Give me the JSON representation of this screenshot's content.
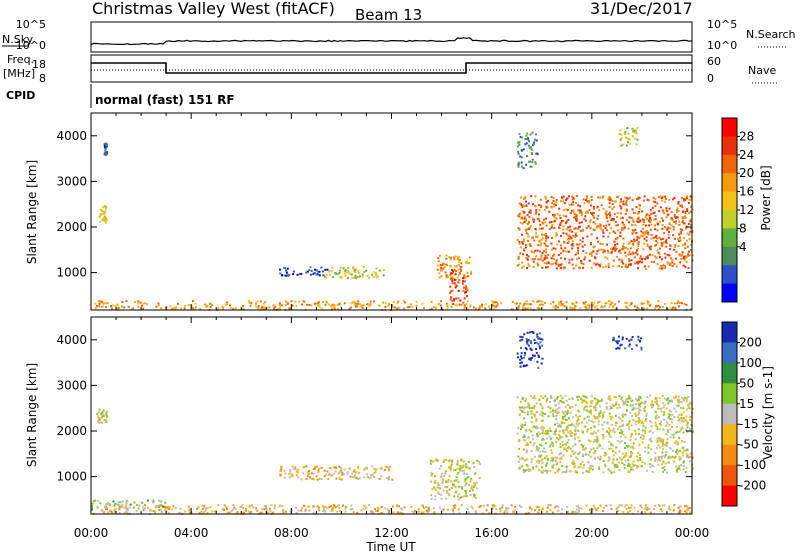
{
  "header": {
    "title": "Christmas Valley West (fitACF)",
    "beam": "Beam 13",
    "date": "31/Dec/2017"
  },
  "top_panels": {
    "nsky_label": "N.Sky",
    "nsearch_label": "N.Search",
    "noise_ticks_left": [
      "10^5",
      "10^0"
    ],
    "noise_ticks_right": [
      "10^5",
      "10^0"
    ],
    "freq_label_1": "Freq.",
    "freq_label_2": "[MHz]",
    "freq_ticks": [
      "18",
      "8"
    ],
    "nave_label": "Nave",
    "nave_ticks": [
      "60",
      "0"
    ],
    "cpid_label": "CPID",
    "cpid_value": "normal (fast) 151 RF"
  },
  "chart_data": [
    {
      "type": "heatmap",
      "name": "power",
      "ylabel": "Slant Range [km]",
      "xlabel": "Time UT",
      "x_ticks": [
        "00:00",
        "04:00",
        "08:00",
        "12:00",
        "16:00",
        "20:00",
        "00:00"
      ],
      "xlim": [
        0,
        24
      ],
      "ylim": [
        180,
        4500
      ],
      "y_ticks": [
        1000,
        2000,
        3000,
        4000
      ],
      "colorbar": {
        "label": "Power [dB]",
        "ticks": [
          "4",
          "8",
          "12",
          "16",
          "20",
          "24",
          "28"
        ],
        "colors": [
          "#0000ff",
          "#2e4fc7",
          "#4b8a5a",
          "#5fb03c",
          "#bcd12b",
          "#f2c018",
          "#f59a10",
          "#f0650c",
          "#e8300a",
          "#ff0000"
        ]
      },
      "regions": [
        {
          "t0": 0.0,
          "t1": 24.0,
          "r0": 200,
          "r1": 400,
          "level": 6
        },
        {
          "t0": 0.3,
          "t1": 0.6,
          "r0": 2100,
          "r1": 2500,
          "level": 5
        },
        {
          "t0": 0.5,
          "t1": 0.6,
          "r0": 3600,
          "r1": 3850,
          "level": 1
        },
        {
          "t0": 7.5,
          "t1": 9.5,
          "r0": 950,
          "r1": 1150,
          "level": 1
        },
        {
          "t0": 9.3,
          "t1": 11.7,
          "r0": 900,
          "r1": 1150,
          "level": 4
        },
        {
          "t0": 13.8,
          "t1": 15.2,
          "r0": 900,
          "r1": 1400,
          "level": 6
        },
        {
          "t0": 14.3,
          "t1": 15.0,
          "r0": 300,
          "r1": 1100,
          "level": 8
        },
        {
          "t0": 17.0,
          "t1": 24.0,
          "r0": 1100,
          "r1": 2700,
          "level": 7
        },
        {
          "t0": 17.0,
          "t1": 17.8,
          "r0": 3300,
          "r1": 4100,
          "level": 2
        },
        {
          "t0": 21.0,
          "t1": 21.8,
          "r0": 3800,
          "r1": 4200,
          "level": 4
        }
      ]
    },
    {
      "type": "heatmap",
      "name": "velocity",
      "ylabel": "Slant Range [km]",
      "xlabel": "Time UT",
      "x_ticks": [
        "00:00",
        "04:00",
        "08:00",
        "12:00",
        "16:00",
        "20:00",
        "00:00"
      ],
      "xlim": [
        0,
        24
      ],
      "ylim": [
        180,
        4500
      ],
      "y_ticks": [
        1000,
        2000,
        3000,
        4000
      ],
      "colorbar": {
        "label": "Velocity [m s-1]",
        "ticks": [
          "200",
          "100",
          "50",
          "15",
          "-15",
          "-50",
          "-100",
          "-200"
        ],
        "colors": [
          "#1a2bb0",
          "#3a6cc0",
          "#2f8f3f",
          "#7fc62a",
          "#bcbcbc",
          "#f2b81a",
          "#f58a10",
          "#f0550c",
          "#ff0000"
        ]
      },
      "regions": [
        {
          "t0": 0.0,
          "t1": 24.0,
          "r0": 200,
          "r1": 400,
          "level": 5
        },
        {
          "t0": 0.0,
          "t1": 3.0,
          "r0": 300,
          "r1": 500,
          "level": 3
        },
        {
          "t0": 0.2,
          "t1": 0.6,
          "r0": 2200,
          "r1": 2500,
          "level": 4
        },
        {
          "t0": 7.5,
          "t1": 12.0,
          "r0": 950,
          "r1": 1250,
          "level": 5
        },
        {
          "t0": 13.5,
          "t1": 15.5,
          "r0": 500,
          "r1": 1400,
          "level": 4
        },
        {
          "t0": 17.0,
          "t1": 24.0,
          "r0": 1100,
          "r1": 2800,
          "level": 4
        },
        {
          "t0": 17.0,
          "t1": 18.0,
          "r0": 3400,
          "r1": 4200,
          "level": 0
        },
        {
          "t0": 20.8,
          "t1": 22.0,
          "r0": 3800,
          "r1": 4100,
          "level": 0
        }
      ]
    }
  ]
}
